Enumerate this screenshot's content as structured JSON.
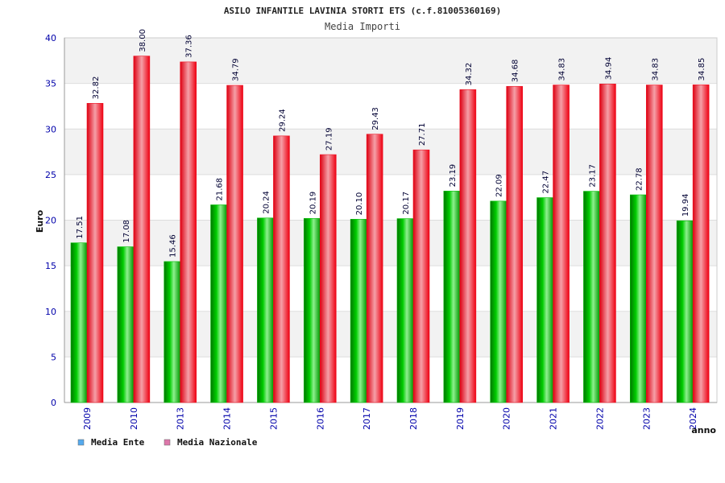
{
  "chart_data": {
    "type": "bar",
    "title": "ASILO INFANTILE LAVINIA STORTI ETS (c.f.81005360169)",
    "subtitle": "Media Importi",
    "xlabel": "anno",
    "ylabel": "Euro",
    "ylim": [
      0,
      40
    ],
    "yticks": [
      "0",
      "5",
      "10",
      "15",
      "20",
      "25",
      "30",
      "35",
      "40"
    ],
    "grid": true,
    "legend_position": "bottom-left",
    "categories": [
      "2009",
      "2010",
      "2013",
      "2014",
      "2015",
      "2016",
      "2017",
      "2018",
      "2019",
      "2020",
      "2021",
      "2022",
      "2023",
      "2024"
    ],
    "series": [
      {
        "name": "Media Ente",
        "color": "#00bb00",
        "legend_color": "#55aaee",
        "values": [
          17.51,
          17.08,
          15.46,
          21.68,
          20.24,
          20.19,
          20.1,
          20.17,
          23.19,
          22.09,
          22.47,
          23.17,
          22.78,
          19.94
        ],
        "labels": [
          "17.51",
          "17.08",
          "15.46",
          "21.68",
          "20.24",
          "20.19",
          "20.10",
          "20.17",
          "23.19",
          "22.09",
          "22.47",
          "23.17",
          "22.78",
          "19.94"
        ]
      },
      {
        "name": "Media Nazionale",
        "color": "#ee1122",
        "legend_color": "#dd77aa",
        "values": [
          32.82,
          38.0,
          37.36,
          34.79,
          29.24,
          27.19,
          29.43,
          27.71,
          34.32,
          34.68,
          34.83,
          34.94,
          34.83,
          34.85
        ],
        "labels": [
          "32.82",
          "38.00",
          "37.36",
          "34.79",
          "29.24",
          "27.19",
          "29.43",
          "27.71",
          "34.32",
          "34.68",
          "34.83",
          "34.94",
          "34.83",
          "34.85"
        ]
      }
    ]
  }
}
